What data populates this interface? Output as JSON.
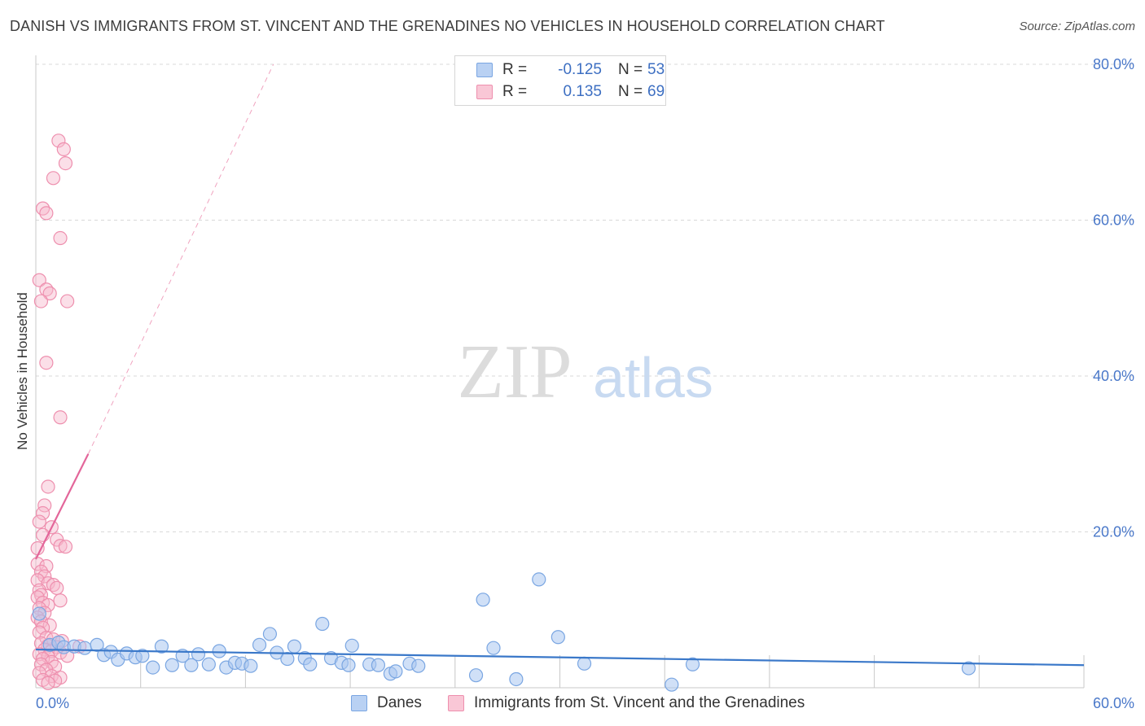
{
  "header": {
    "title": "DANISH VS IMMIGRANTS FROM ST. VINCENT AND THE GRENADINES NO VEHICLES IN HOUSEHOLD CORRELATION CHART",
    "source": "Source: ZipAtlas.com"
  },
  "watermark": {
    "zip": "ZIP",
    "atlas": "atlas"
  },
  "legend": {
    "rows": [
      {
        "r_label": "R =",
        "r_value": "-0.125",
        "n_label": "N =",
        "n_value": "53"
      },
      {
        "r_label": "R =",
        "r_value": "0.135",
        "n_label": "N =",
        "n_value": "69"
      }
    ]
  },
  "bottom_legend": {
    "danes": "Danes",
    "immigrants": "Immigrants from St. Vincent and the Grenadines"
  },
  "colors": {
    "danes_fill": "#a9c7f0",
    "danes_stroke": "#7aa6e2",
    "danes_line": "#3a78c9",
    "immig_fill": "#f7b8cb",
    "immig_stroke": "#ee8fae",
    "immig_line": "#e3669a",
    "tick_text": "#4a78c9",
    "grid": "#d9d9d9"
  },
  "chart_data": {
    "type": "scatter",
    "title": "DANISH VS IMMIGRANTS FROM ST. VINCENT AND THE GRENADINES NO VEHICLES IN HOUSEHOLD CORRELATION CHART",
    "xlabel": "",
    "ylabel": "No Vehicles in Household",
    "xlim": [
      0,
      60
    ],
    "ylim": [
      0,
      82
    ],
    "x_ticks": [
      "0.0%",
      "60.0%"
    ],
    "y_ticks": [
      {
        "value": 20,
        "label": "20.0%"
      },
      {
        "value": 40,
        "label": "40.0%"
      },
      {
        "value": 60,
        "label": "60.0%"
      },
      {
        "value": 80,
        "label": "80.0%"
      }
    ],
    "grid": true,
    "legend_position": "top-center",
    "series": [
      {
        "name": "Danes",
        "R": -0.125,
        "N": 53,
        "points": [
          [
            0.2,
            9.5
          ],
          [
            0.8,
            5.5
          ],
          [
            1.3,
            5.8
          ],
          [
            1.6,
            5.2
          ],
          [
            2.2,
            5.3
          ],
          [
            2.8,
            5.1
          ],
          [
            3.5,
            5.5
          ],
          [
            3.9,
            4.2
          ],
          [
            4.3,
            4.6
          ],
          [
            4.7,
            3.6
          ],
          [
            5.2,
            4.4
          ],
          [
            5.7,
            3.9
          ],
          [
            6.1,
            4.1
          ],
          [
            6.7,
            2.6
          ],
          [
            7.2,
            5.3
          ],
          [
            7.8,
            2.9
          ],
          [
            8.4,
            4.1
          ],
          [
            8.9,
            2.9
          ],
          [
            9.3,
            4.3
          ],
          [
            9.9,
            3.0
          ],
          [
            10.5,
            4.7
          ],
          [
            10.9,
            2.6
          ],
          [
            11.4,
            3.2
          ],
          [
            11.8,
            3.1
          ],
          [
            12.3,
            2.8
          ],
          [
            12.8,
            5.5
          ],
          [
            13.4,
            6.9
          ],
          [
            13.8,
            4.5
          ],
          [
            14.4,
            3.7
          ],
          [
            14.8,
            5.3
          ],
          [
            15.4,
            3.8
          ],
          [
            15.7,
            3.0
          ],
          [
            16.4,
            8.2
          ],
          [
            16.9,
            3.8
          ],
          [
            17.5,
            3.2
          ],
          [
            17.9,
            2.9
          ],
          [
            18.1,
            5.4
          ],
          [
            19.1,
            3.0
          ],
          [
            19.6,
            2.9
          ],
          [
            20.3,
            1.8
          ],
          [
            20.6,
            2.1
          ],
          [
            21.4,
            3.1
          ],
          [
            21.9,
            2.8
          ],
          [
            25.2,
            1.6
          ],
          [
            25.6,
            11.3
          ],
          [
            26.2,
            5.1
          ],
          [
            27.5,
            1.1
          ],
          [
            28.8,
            13.9
          ],
          [
            29.9,
            6.5
          ],
          [
            31.4,
            3.1
          ],
          [
            37.6,
            3.0
          ],
          [
            53.4,
            2.5
          ],
          [
            36.4,
            0.4
          ]
        ],
        "trend": {
          "x": [
            0,
            60
          ],
          "y": [
            4.9,
            2.9
          ]
        }
      },
      {
        "name": "Immigrants from St. Vincent and the Grenadines",
        "R": 0.135,
        "N": 69,
        "points": [
          [
            1.3,
            70.2
          ],
          [
            1.6,
            69.1
          ],
          [
            1.7,
            67.3
          ],
          [
            1.0,
            65.4
          ],
          [
            0.4,
            61.5
          ],
          [
            0.6,
            60.9
          ],
          [
            1.4,
            57.7
          ],
          [
            0.2,
            52.3
          ],
          [
            0.6,
            51.1
          ],
          [
            0.8,
            50.6
          ],
          [
            0.3,
            49.6
          ],
          [
            1.8,
            49.6
          ],
          [
            0.6,
            41.7
          ],
          [
            1.4,
            34.7
          ],
          [
            0.7,
            25.8
          ],
          [
            0.5,
            23.4
          ],
          [
            0.4,
            22.4
          ],
          [
            0.2,
            21.3
          ],
          [
            0.9,
            20.6
          ],
          [
            0.4,
            19.6
          ],
          [
            1.2,
            19.0
          ],
          [
            1.4,
            18.2
          ],
          [
            1.7,
            18.1
          ],
          [
            0.1,
            17.9
          ],
          [
            0.1,
            15.9
          ],
          [
            0.6,
            15.6
          ],
          [
            0.3,
            14.9
          ],
          [
            0.5,
            14.3
          ],
          [
            0.1,
            13.8
          ],
          [
            0.7,
            13.4
          ],
          [
            1.0,
            13.2
          ],
          [
            0.2,
            12.5
          ],
          [
            1.2,
            12.8
          ],
          [
            0.3,
            11.9
          ],
          [
            0.1,
            11.6
          ],
          [
            1.4,
            11.2
          ],
          [
            0.4,
            10.9
          ],
          [
            0.7,
            10.6
          ],
          [
            0.2,
            10.2
          ],
          [
            0.5,
            9.6
          ],
          [
            0.1,
            9.0
          ],
          [
            0.3,
            8.5
          ],
          [
            0.8,
            8.0
          ],
          [
            0.4,
            7.7
          ],
          [
            0.2,
            7.1
          ],
          [
            0.6,
            6.4
          ],
          [
            1.0,
            6.2
          ],
          [
            1.5,
            6.0
          ],
          [
            0.3,
            5.7
          ],
          [
            0.7,
            5.4
          ],
          [
            1.2,
            5.2
          ],
          [
            2.5,
            5.3
          ],
          [
            0.5,
            4.9
          ],
          [
            0.9,
            4.7
          ],
          [
            1.4,
            4.5
          ],
          [
            0.2,
            4.3
          ],
          [
            0.7,
            4.0
          ],
          [
            1.8,
            4.1
          ],
          [
            0.4,
            3.7
          ],
          [
            0.9,
            3.3
          ],
          [
            0.3,
            3.0
          ],
          [
            1.1,
            2.7
          ],
          [
            0.6,
            2.3
          ],
          [
            0.2,
            1.9
          ],
          [
            0.9,
            1.5
          ],
          [
            1.4,
            1.3
          ],
          [
            0.4,
            1.0
          ],
          [
            1.1,
            0.9
          ],
          [
            0.7,
            0.6
          ]
        ],
        "trend": {
          "x": [
            0,
            3
          ],
          "y": [
            16.5,
            30.0
          ]
        },
        "trend_extension": {
          "x": [
            3,
            13.6
          ],
          "y": [
            30.0,
            80.0
          ]
        }
      }
    ]
  }
}
